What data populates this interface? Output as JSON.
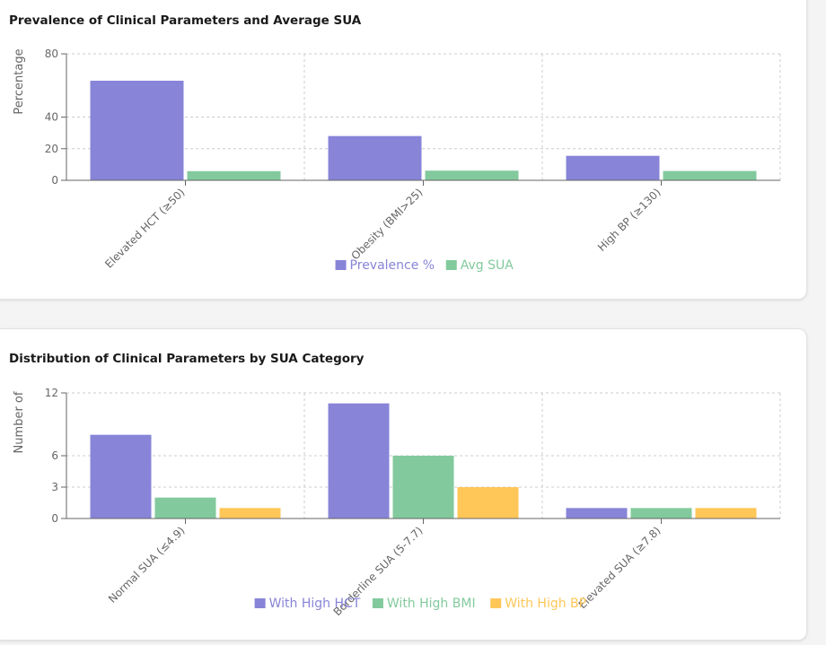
{
  "colors": {
    "purple": "#8884d8",
    "green": "#82ca9d",
    "yellow": "#ffc658",
    "grid": "#cccccc",
    "axis": "#666666"
  },
  "charts": [
    {
      "title": "Prevalence of Clinical Parameters and Average SUA",
      "chart_data": {
        "type": "bar",
        "title": "Prevalence of Clinical Parameters and Average SUA",
        "ylabel": "Percentage",
        "ylim": [
          0,
          80
        ],
        "yticks": [
          0,
          20,
          40,
          80
        ],
        "grid": true,
        "legend": "bottom-center",
        "categories": [
          "Elevated HCT (≥50)",
          "Obesity (BMI>25)",
          "High BP (≥130)"
        ],
        "series": [
          {
            "name": "Prevalence %",
            "color": "#8884d8",
            "values": [
              63,
              28,
              15.5
            ]
          },
          {
            "name": "Avg SUA",
            "color": "#82ca9d",
            "values": [
              5.8,
              6.1,
              5.9
            ]
          }
        ]
      }
    },
    {
      "title": "Distribution of Clinical Parameters by SUA Category",
      "chart_data": {
        "type": "bar",
        "title": "Distribution of Clinical Parameters by SUA Category",
        "ylabel": "Number of",
        "ylim": [
          0,
          12
        ],
        "yticks": [
          0,
          3,
          6,
          12
        ],
        "grid": true,
        "legend": "bottom-center",
        "categories": [
          "Normal SUA (≤4.9)",
          "Borderline SUA (5-7.7)",
          "Elevated SUA (≥7.8)"
        ],
        "series": [
          {
            "name": "With High HCT",
            "color": "#8884d8",
            "values": [
              8,
              11,
              1
            ]
          },
          {
            "name": "With High BMI",
            "color": "#82ca9d",
            "values": [
              2,
              6,
              1
            ]
          },
          {
            "name": "With High BP",
            "color": "#ffc658",
            "values": [
              1,
              3,
              1
            ]
          }
        ]
      }
    }
  ]
}
